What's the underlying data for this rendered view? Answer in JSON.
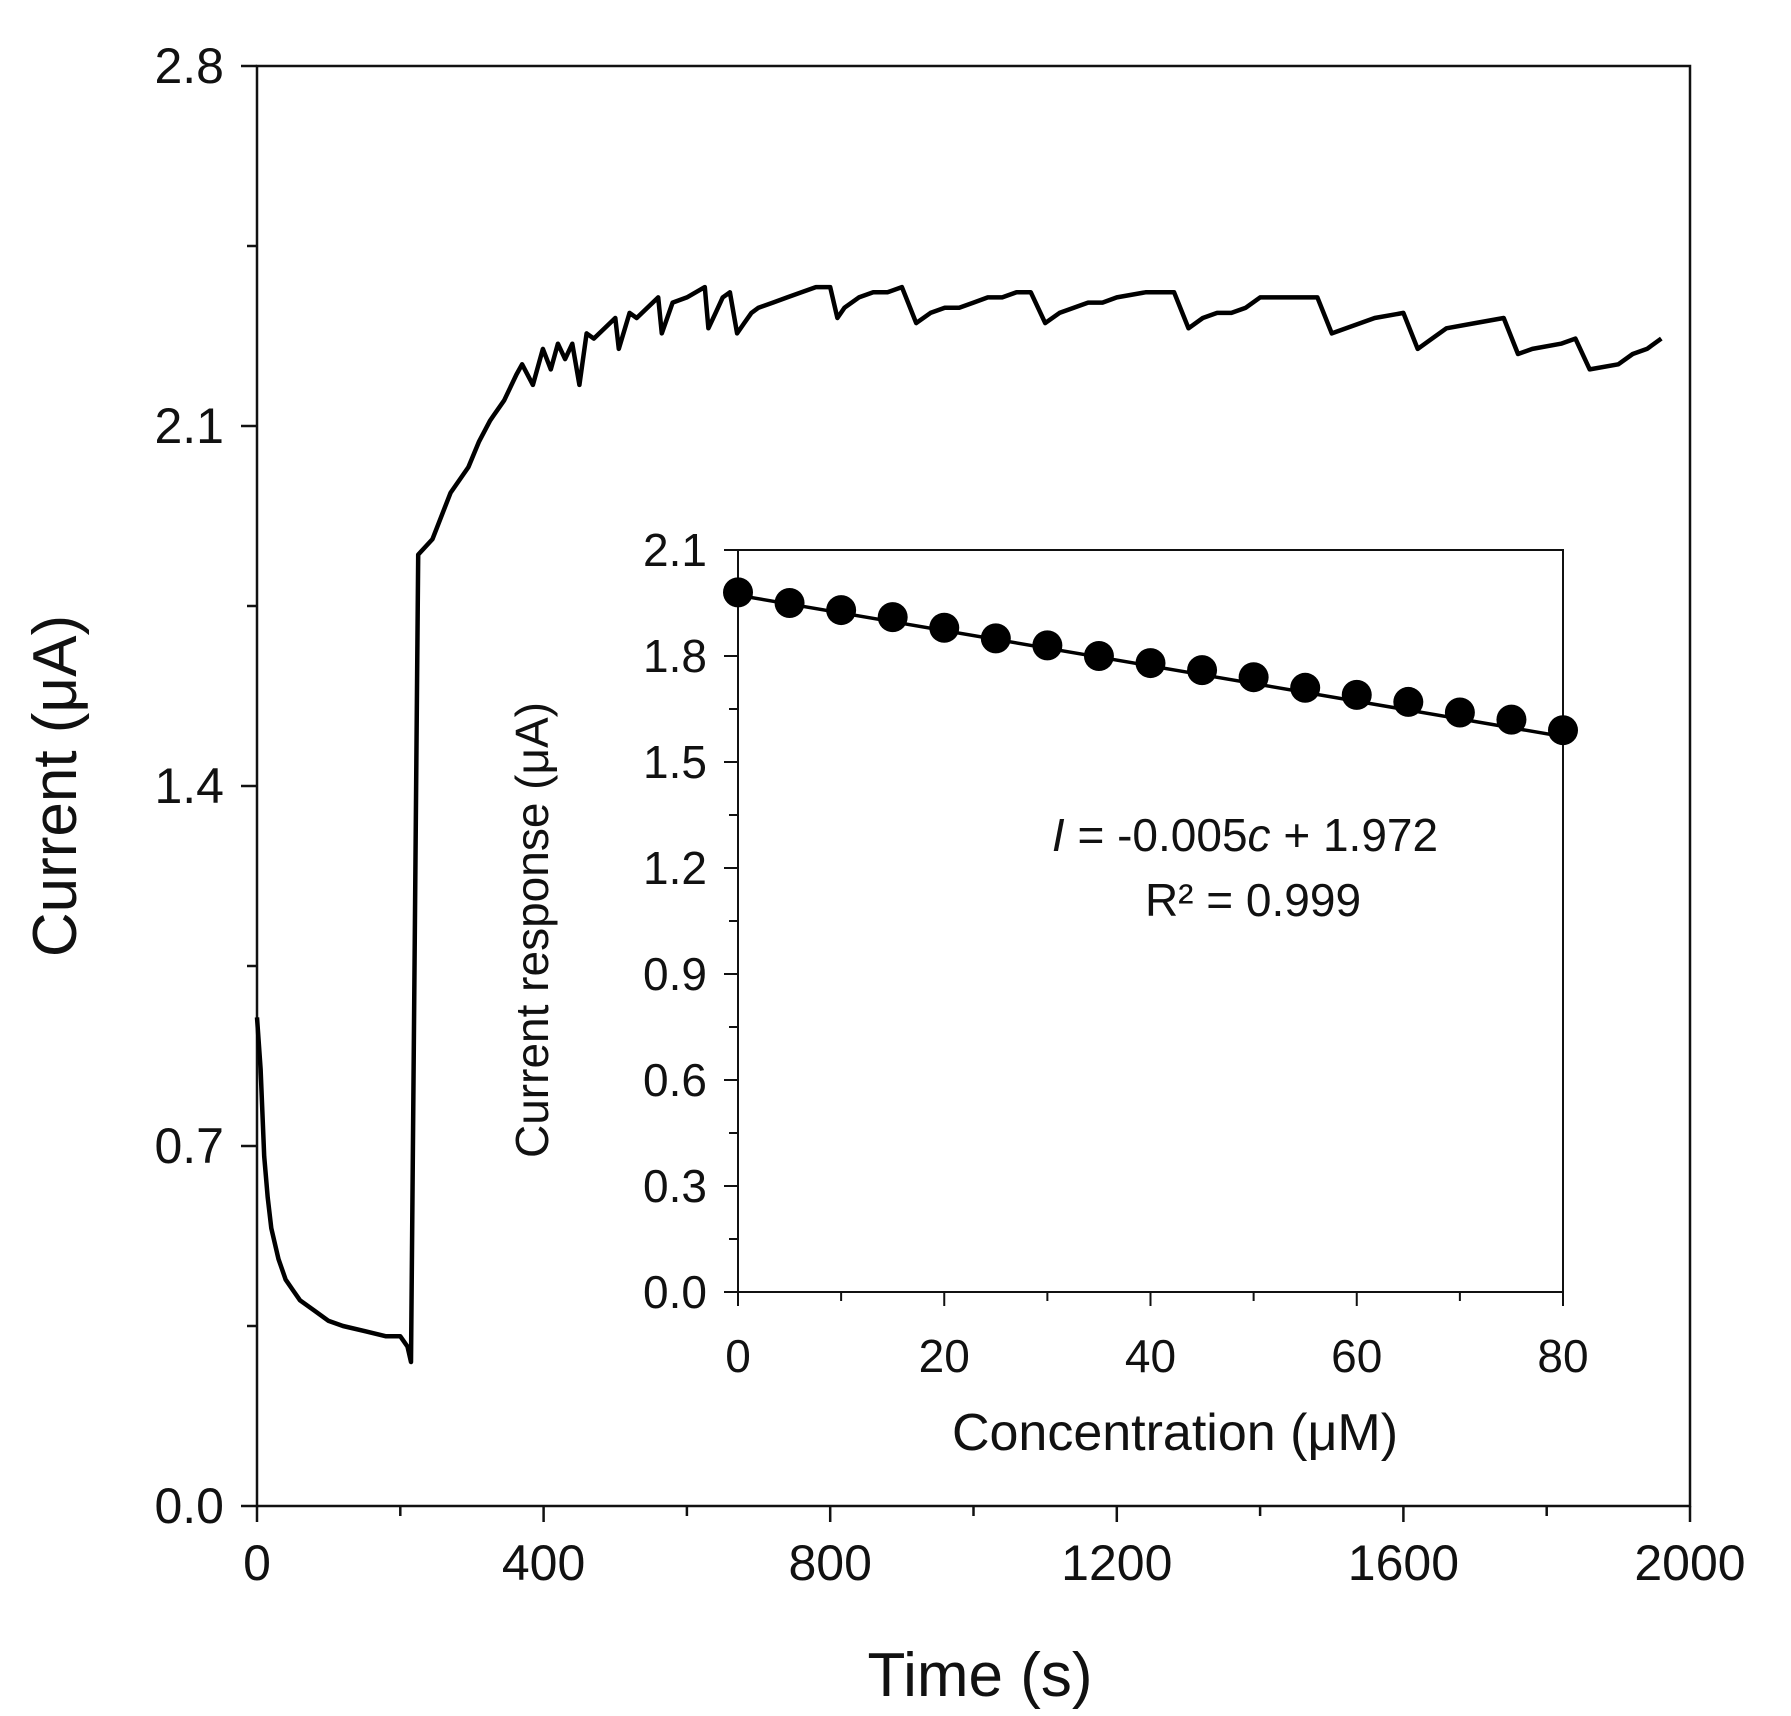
{
  "chart_data": [
    {
      "type": "line",
      "xlabel": "Time (s)",
      "ylabel": "Current (μA)",
      "xlim": [
        0,
        2000
      ],
      "ylim": [
        0,
        2.8
      ],
      "x_ticks": [
        0,
        400,
        800,
        1200,
        1600,
        2000
      ],
      "y_ticks": [
        0.0,
        0.7,
        1.4,
        2.1,
        2.8
      ],
      "x_tick_labels": [
        "0",
        "400",
        "800",
        "1200",
        "1600",
        "2000"
      ],
      "y_tick_labels": [
        "0.0",
        "0.7",
        "1.4",
        "2.1",
        "2.8"
      ],
      "color": "#000000",
      "x": [
        0,
        5,
        10,
        15,
        20,
        30,
        40,
        50,
        60,
        80,
        100,
        120,
        150,
        180,
        200,
        205,
        210,
        215,
        225,
        245,
        270,
        295,
        310,
        325,
        330,
        345,
        362,
        370,
        385,
        399,
        410,
        420,
        430,
        440,
        450,
        460,
        470,
        500,
        505,
        520,
        530,
        560,
        565,
        580,
        600,
        625,
        630,
        640,
        650,
        660,
        670,
        680,
        690,
        700,
        720,
        740,
        760,
        780,
        800,
        810,
        820,
        840,
        860,
        880,
        900,
        920,
        940,
        960,
        980,
        1000,
        1020,
        1040,
        1060,
        1080,
        1100,
        1120,
        1140,
        1160,
        1180,
        1200,
        1240,
        1280,
        1300,
        1320,
        1340,
        1360,
        1380,
        1400,
        1440,
        1480,
        1500,
        1520,
        1560,
        1600,
        1620,
        1640,
        1660,
        1700,
        1740,
        1760,
        1780,
        1820,
        1840,
        1860,
        1900,
        1920,
        1940,
        1950,
        1960
      ],
      "y": [
        0.95,
        0.85,
        0.68,
        0.6,
        0.54,
        0.48,
        0.44,
        0.42,
        0.4,
        0.38,
        0.36,
        0.35,
        0.34,
        0.33,
        0.33,
        0.32,
        0.31,
        0.28,
        1.85,
        1.88,
        1.97,
        2.02,
        2.07,
        2.11,
        2.12,
        2.15,
        2.2,
        2.22,
        2.18,
        2.25,
        2.21,
        2.26,
        2.23,
        2.26,
        2.18,
        2.28,
        2.27,
        2.31,
        2.25,
        2.32,
        2.31,
        2.35,
        2.28,
        2.34,
        2.35,
        2.37,
        2.29,
        2.32,
        2.35,
        2.36,
        2.28,
        2.3,
        2.32,
        2.33,
        2.34,
        2.35,
        2.36,
        2.37,
        2.37,
        2.31,
        2.33,
        2.35,
        2.36,
        2.36,
        2.37,
        2.3,
        2.32,
        2.33,
        2.33,
        2.34,
        2.35,
        2.35,
        2.36,
        2.36,
        2.3,
        2.32,
        2.33,
        2.34,
        2.34,
        2.35,
        2.36,
        2.36,
        2.29,
        2.31,
        2.32,
        2.32,
        2.33,
        2.35,
        2.35,
        2.35,
        2.28,
        2.29,
        2.31,
        2.32,
        2.25,
        2.27,
        2.29,
        2.3,
        2.31,
        2.24,
        2.25,
        2.26,
        2.27,
        2.21,
        2.22,
        2.24,
        2.25,
        2.26,
        2.27
      ]
    },
    {
      "type": "scatter",
      "inset": true,
      "xlabel": "Concentration (μM)",
      "ylabel": "Current response (μA)",
      "xlim": [
        0,
        80
      ],
      "ylim": [
        0,
        2.1
      ],
      "x_ticks": [
        0,
        20,
        40,
        60,
        80
      ],
      "y_ticks": [
        0.0,
        0.3,
        0.6,
        0.9,
        1.2,
        1.5,
        1.8,
        2.1
      ],
      "x_tick_labels": [
        "0",
        "20",
        "40",
        "60",
        "80"
      ],
      "y_tick_labels": [
        "0.0",
        "0.3",
        "0.6",
        "0.9",
        "1.2",
        "1.5",
        "1.8",
        "2.1"
      ],
      "x": [
        0,
        5,
        10,
        15,
        20,
        25,
        30,
        35,
        40,
        45,
        50,
        55,
        60,
        65,
        70,
        75,
        80
      ],
      "y": [
        1.98,
        1.95,
        1.93,
        1.91,
        1.88,
        1.85,
        1.83,
        1.8,
        1.78,
        1.76,
        1.74,
        1.71,
        1.69,
        1.67,
        1.64,
        1.62,
        1.59
      ],
      "fit": {
        "slope": -0.005,
        "intercept": 1.972
      },
      "equation": {
        "prefix": "I",
        "middle": " = -0.005",
        "var": "c",
        "suffix": " + 1.972"
      },
      "r_squared": "R² = 0.999",
      "color": "#000000"
    }
  ]
}
